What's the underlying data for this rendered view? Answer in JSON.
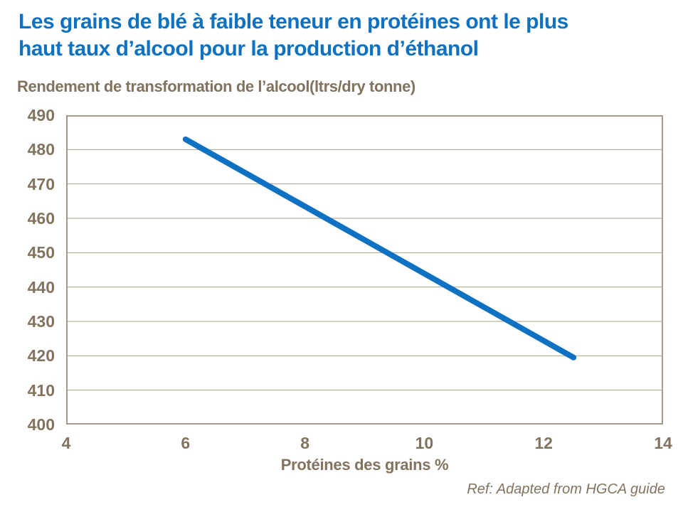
{
  "header": {
    "title_line1": "Les grains de blé à faible teneur en protéines ont le plus",
    "title_line2": "haut taux d’alcool pour la production d’éthanol"
  },
  "chart_data": {
    "type": "line",
    "title": "Rendement de transformation de l’alcool(ltrs/dry tonne)",
    "xlabel": "Protéines des grains %",
    "ylabel": "Rendement de transformation de l’alcool (ltrs/dry tonne)",
    "xlim": [
      4,
      14
    ],
    "ylim": [
      400,
      490
    ],
    "x_ticks": [
      4,
      6,
      8,
      10,
      12,
      14
    ],
    "y_ticks": [
      400,
      410,
      420,
      430,
      440,
      450,
      460,
      470,
      480,
      490
    ],
    "grid": "horizontal",
    "legend": "none",
    "series": [
      {
        "name": "rendement-alcool",
        "color": "#0f71c1",
        "points": [
          [
            6,
            483
          ],
          [
            12.5,
            419.5
          ]
        ]
      }
    ]
  },
  "footer": {
    "ref": "Ref: Adapted from HGCA guide"
  },
  "colors": {
    "title_blue": "#0f71c1",
    "line_blue": "#0f71c1",
    "label_brown": "#82735f",
    "axis_frame": "#a59a8a",
    "gridline": "#ad9f8e",
    "background": "#ffffff"
  }
}
